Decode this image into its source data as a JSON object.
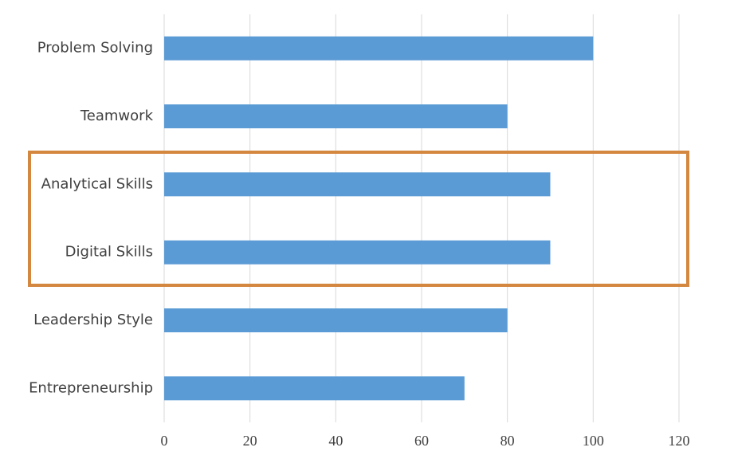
{
  "chart_data": {
    "type": "bar",
    "categories": [
      "Problem Solving",
      "Teamwork",
      "Analytical Skills",
      "Digital Skills",
      "Leadership Style",
      "Entrepreneurship"
    ],
    "values": [
      100,
      80,
      90,
      90,
      80,
      70
    ],
    "color": "#5b9bd5",
    "xlim": [
      0,
      120
    ],
    "xticks": [
      0,
      20,
      40,
      60,
      80,
      100,
      120
    ],
    "grid": true
  }
}
